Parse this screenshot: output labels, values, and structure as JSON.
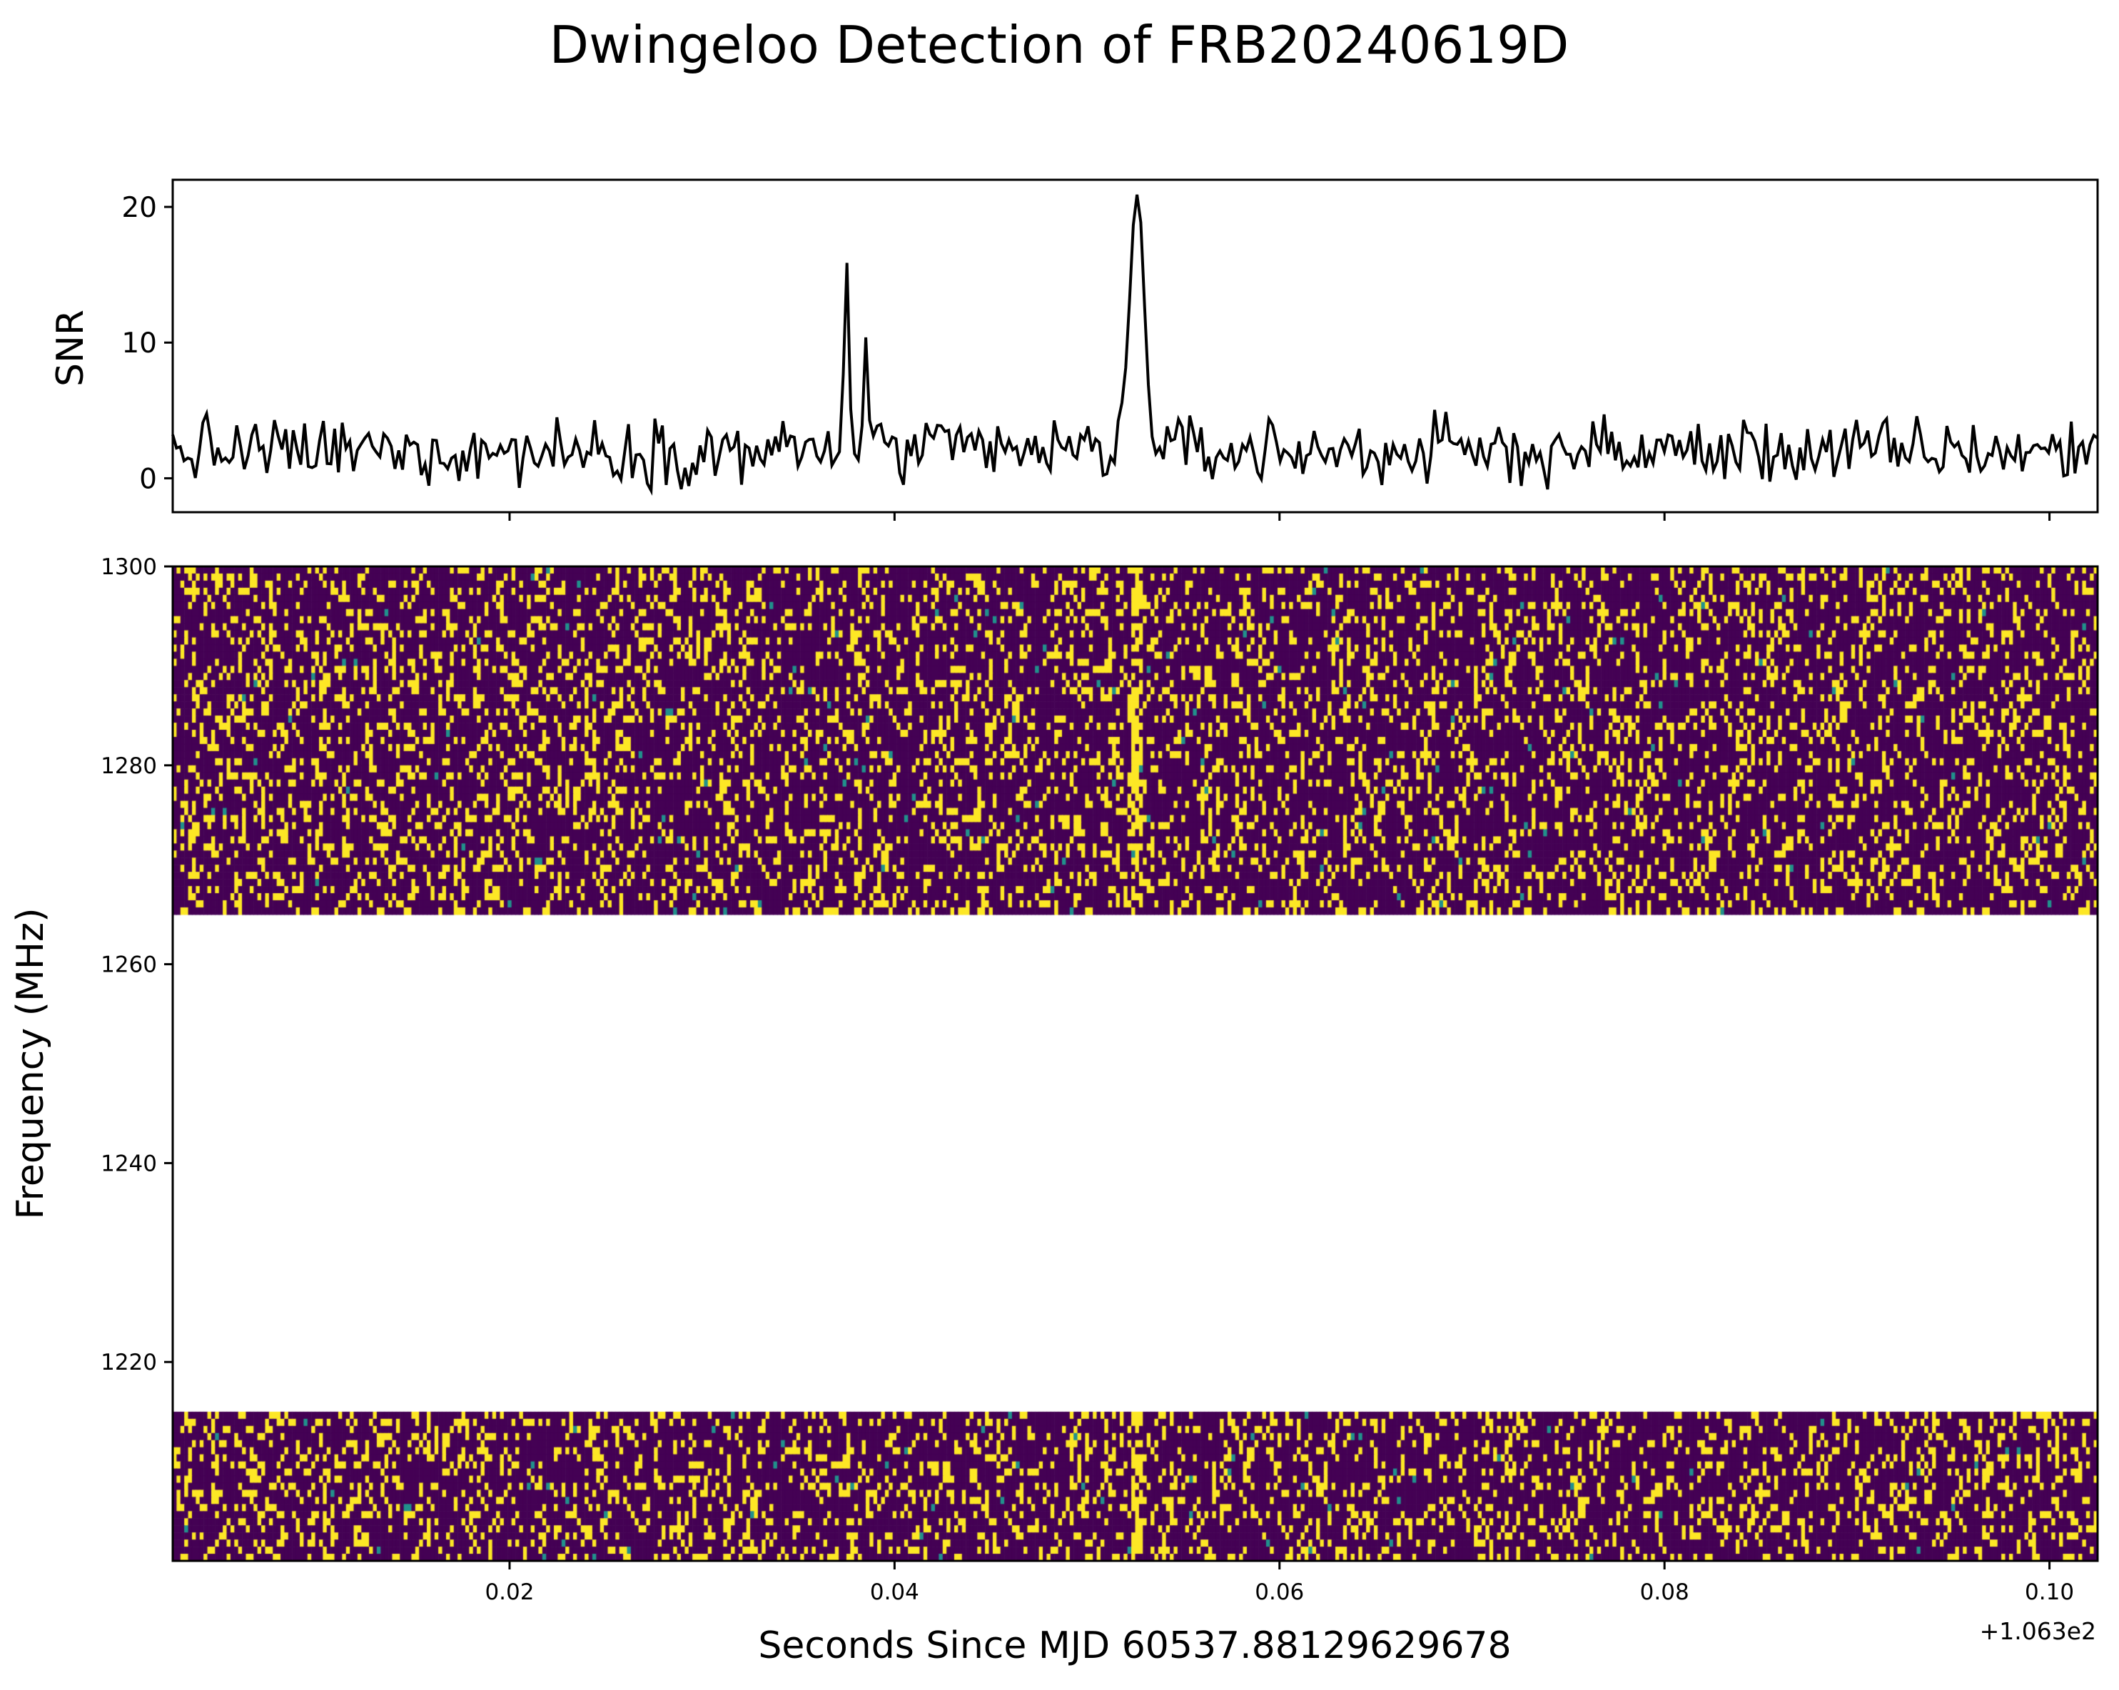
{
  "chart_data": [
    {
      "type": "line",
      "title": "Dwingeloo Detection of FRB20240619D",
      "ylabel": "SNR",
      "xlim": [
        0.0025,
        0.1025
      ],
      "ylim": [
        -2.5,
        22
      ],
      "yticks": [
        0,
        10,
        20
      ],
      "ytick_labels": [
        "0",
        "10",
        "20"
      ],
      "xticks": [
        0.02,
        0.04,
        0.06,
        0.08,
        0.1
      ],
      "grid": false,
      "series_color": "#000000",
      "peaks": [
        {
          "x": 0.0375,
          "y": 16.2
        },
        {
          "x": 0.0385,
          "y": 10.4
        },
        {
          "x": 0.0526,
          "y": 20.9
        }
      ],
      "noise_level": 2.0,
      "samples": 512
    },
    {
      "type": "heatmap",
      "xlabel": "Seconds Since MJD 60537.88129629678",
      "ylabel": "Frequency (MHz)",
      "x_offset_label": "+1.063e2",
      "xlim": [
        0.0025,
        0.1025
      ],
      "ylim": [
        1200,
        1300
      ],
      "xticks": [
        0.02,
        0.04,
        0.06,
        0.08,
        0.1
      ],
      "xtick_labels": [
        "0.02",
        "0.04",
        "0.06",
        "0.08",
        "0.10"
      ],
      "yticks": [
        1220,
        1240,
        1260,
        1280,
        1300
      ],
      "ytick_labels": [
        "1220",
        "1240",
        "1260",
        "1280",
        "1300"
      ],
      "masked_band_mhz": [
        1215,
        1265
      ],
      "burst_time": 0.0526,
      "colormap": {
        "low": "#440154",
        "mid": "#21918c",
        "high": "#fde725"
      }
    }
  ]
}
